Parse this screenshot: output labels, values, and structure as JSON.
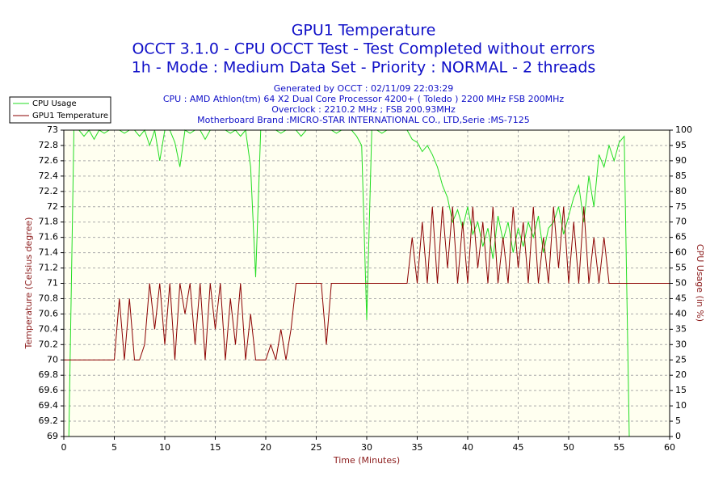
{
  "chart_data": {
    "type": "line",
    "title": "GPU1 Temperature",
    "subtitle_lines": [
      "OCCT 3.1.0 - CPU OCCT Test - Test Completed without errors",
      "1h - Mode : Medium Data Set - Priority : NORMAL - 2 threads"
    ],
    "annotations": [
      "Generated by OCCT : 02/11/09 22:03:29",
      "CPU : AMD Athlon(tm) 64 X2 Dual Core Processor 4200+ ( Toledo ) 2200 MHz FSB 200MHz",
      "Overclock : 2210.2 MHz ; FSB 200.93MHz",
      "Motherboard Brand :MICRO-STAR INTERNATIONAL CO., LTD,Serie :MS-7125"
    ],
    "xlabel": "Time (Minutes)",
    "ylabel": "Temperature (Celsius degree)",
    "y2label": "CPU Usage (in %)",
    "x": [
      0,
      0.5,
      1,
      1.5,
      2,
      2.5,
      3,
      3.5,
      4,
      4.5,
      5,
      5.5,
      6,
      6.5,
      7,
      7.5,
      8,
      8.5,
      9,
      9.5,
      10,
      10.5,
      11,
      11.5,
      12,
      12.5,
      13,
      13.5,
      14,
      14.5,
      15,
      15.5,
      16,
      16.5,
      17,
      17.5,
      18,
      18.5,
      19,
      19.5,
      20,
      20.5,
      21,
      21.5,
      22,
      22.5,
      23,
      23.5,
      24,
      24.5,
      25,
      25.5,
      26,
      26.5,
      27,
      27.5,
      28,
      28.5,
      29,
      29.5,
      30,
      30.5,
      31,
      31.5,
      32,
      32.5,
      33,
      33.5,
      34,
      34.5,
      35,
      35.5,
      36,
      36.5,
      37,
      37.5,
      38,
      38.5,
      39,
      39.5,
      40,
      40.5,
      41,
      41.5,
      42,
      42.5,
      43,
      43.5,
      44,
      44.5,
      45,
      45.5,
      46,
      46.5,
      47,
      47.5,
      48,
      48.5,
      49,
      49.5,
      50,
      50.5,
      51,
      51.5,
      52,
      52.5,
      53,
      53.5,
      54,
      54.5,
      55,
      55.5,
      56,
      56.5,
      57,
      57.5,
      58,
      58.5,
      59,
      59.5,
      60
    ],
    "series": [
      {
        "name": "CPU Usage",
        "color": "#22dd22",
        "axis": "y2",
        "values": [
          0,
          0,
          100,
          100,
          98,
          100,
          97,
          100,
          99,
          100,
          100,
          100,
          99,
          100,
          100,
          98,
          100,
          95,
          100,
          90,
          100,
          100,
          96,
          88,
          100,
          99,
          100,
          100,
          97,
          100,
          100,
          100,
          100,
          99,
          100,
          98,
          100,
          88,
          52,
          100,
          100,
          100,
          100,
          99,
          100,
          100,
          100,
          98,
          100,
          100,
          100,
          100,
          100,
          100,
          99,
          100,
          100,
          100,
          98,
          95,
          38,
          100,
          100,
          99,
          100,
          100,
          100,
          100,
          100,
          97,
          96,
          93,
          95,
          92,
          88,
          82,
          78,
          70,
          74,
          68,
          75,
          66,
          70,
          62,
          68,
          58,
          72,
          64,
          70,
          60,
          68,
          62,
          70,
          65,
          72,
          60,
          68,
          70,
          75,
          66,
          72,
          78,
          82,
          70,
          85,
          75,
          92,
          88,
          95,
          90,
          96,
          98,
          0,
          0,
          0,
          0,
          0,
          0,
          0,
          0,
          0
        ]
      },
      {
        "name": "GPU1 Temperature",
        "color": "#8b0000",
        "values": [
          70,
          70,
          70,
          70,
          70,
          70,
          70,
          70,
          70,
          70,
          70,
          70.8,
          70,
          70.8,
          70,
          70,
          70.2,
          71,
          70.4,
          71,
          70.2,
          71,
          70,
          71,
          70.6,
          71,
          70.2,
          71,
          70,
          71,
          70.4,
          71,
          70,
          70.8,
          70.2,
          71,
          70,
          70.6,
          70,
          70,
          70,
          70.2,
          70,
          70.4,
          70,
          70.4,
          71,
          71,
          71,
          71,
          71,
          71,
          70.2,
          71,
          71,
          71,
          71,
          71,
          71,
          71,
          71,
          71,
          71,
          71,
          71,
          71,
          71,
          71,
          71,
          71.6,
          71,
          71.8,
          71,
          72,
          71,
          72,
          71.2,
          72,
          71,
          71.8,
          71,
          72,
          71.2,
          71.8,
          71,
          72,
          71,
          71.6,
          71,
          72,
          71.2,
          71.8,
          71,
          72,
          71,
          71.6,
          71,
          72,
          71.2,
          72,
          71,
          71.8,
          71,
          72,
          71,
          71.6,
          71,
          71.6,
          71,
          71,
          71,
          71,
          71,
          71,
          71,
          71,
          71,
          71,
          71,
          71,
          71
        ]
      }
    ],
    "xlim": [
      0,
      60
    ],
    "xticks": [
      0,
      5,
      10,
      15,
      20,
      25,
      30,
      35,
      40,
      45,
      50,
      55,
      60
    ],
    "ylim": [
      69,
      73
    ],
    "yticks": [
      69,
      69.2,
      69.4,
      69.6,
      69.8,
      70,
      70.2,
      70.4,
      70.6,
      70.8,
      71,
      71.2,
      71.4,
      71.6,
      71.8,
      72,
      72.2,
      72.4,
      72.6,
      72.8,
      73
    ],
    "y2lim": [
      0,
      100
    ],
    "y2ticks": [
      0,
      5,
      10,
      15,
      20,
      25,
      30,
      35,
      40,
      45,
      50,
      55,
      60,
      65,
      70,
      75,
      80,
      85,
      90,
      95,
      100
    ],
    "grid": true,
    "legend": "top-left"
  }
}
